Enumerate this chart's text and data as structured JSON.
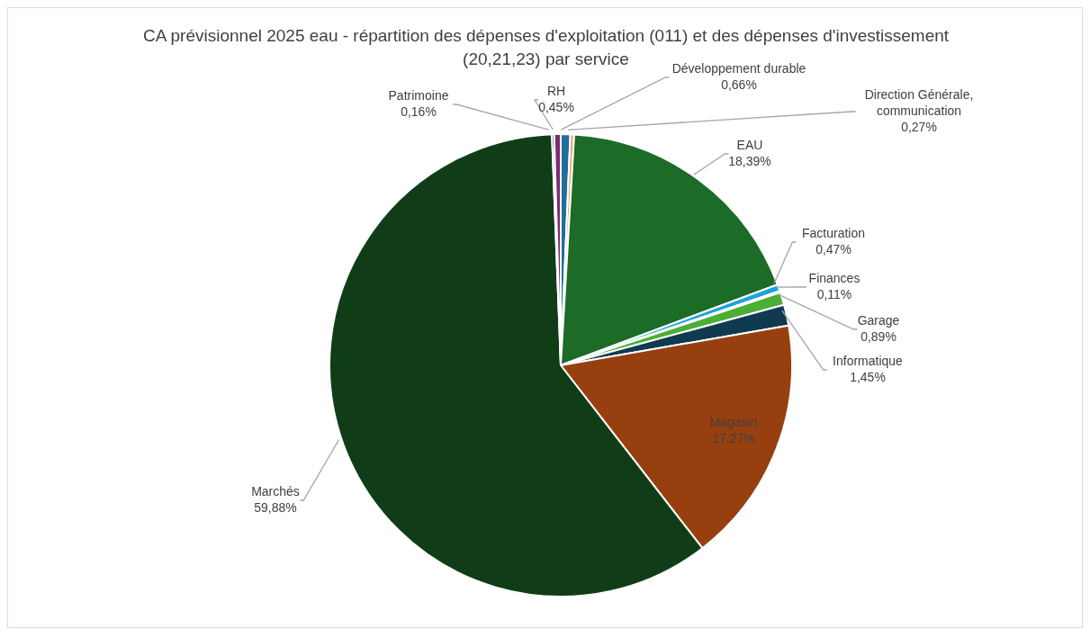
{
  "chart_data": {
    "type": "pie",
    "title": "CA prévisionnel 2025 eau - répartition des dépenses d'exploitation (011) et des dépenses d'investissement (20,21,23) par service",
    "categories": [
      "Développement durable",
      "Direction Générale, communication",
      "EAU",
      "Facturation",
      "Finances",
      "Garage",
      "Informatique",
      "Magasin",
      "Marchés",
      "Patrimoine",
      "RH"
    ],
    "values": [
      0.66,
      0.27,
      18.39,
      0.47,
      0.11,
      0.89,
      1.45,
      17.27,
      59.88,
      0.16,
      0.45
    ],
    "value_labels": [
      "0,66%",
      "0,27%",
      "18,39%",
      "0,47%",
      "0,11%",
      "0,89%",
      "1,45%",
      "17,27%",
      "59,88%",
      "0,16%",
      "0,45%"
    ],
    "colors": [
      "#1f6e9c",
      "#f4a072",
      "#1c6b26",
      "#1ca3dc",
      "#d9d9d9",
      "#4cae33",
      "#0f3a4f",
      "#983f10",
      "#103d18",
      "#4b1f5e",
      "#7b2b70"
    ]
  }
}
